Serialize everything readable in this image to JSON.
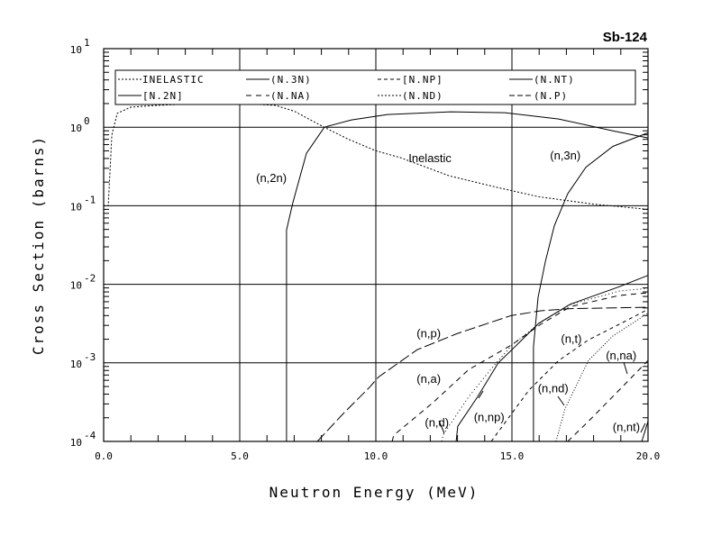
{
  "chart_data": {
    "type": "line",
    "title": "Sb-124",
    "xlabel": "Neutron Energy (MeV)",
    "ylabel": "Cross Section (barns)",
    "xlim": [
      0,
      20
    ],
    "ylim": [
      0.0001,
      10
    ],
    "yscale": "log",
    "grid": true,
    "legend_placement": "top",
    "x_ticks": [
      "0.0",
      "5.0",
      "10.0",
      "15.0",
      "20.0"
    ],
    "x_tick_values": [
      0,
      5,
      10,
      15,
      20
    ],
    "y_ticks": [
      {
        "base": "10",
        "exp": "1",
        "value": 10
      },
      {
        "base": "10",
        "exp": "0",
        "value": 1
      },
      {
        "base": "10",
        "exp": "-1",
        "value": 0.1
      },
      {
        "base": "10",
        "exp": "-2",
        "value": 0.01
      },
      {
        "base": "10",
        "exp": "-3",
        "value": 0.001
      },
      {
        "base": "10",
        "exp": "-4",
        "value": 0.0001
      }
    ],
    "legend": [
      "INELASTIC",
      "(N.3N)",
      "[N.NP]",
      "(N.NT)",
      "[N.2N]",
      "(N.NA)",
      "(N.ND)",
      "(N.P)"
    ],
    "legend_styles": [
      "inelastic",
      "n3n",
      "np",
      "nt",
      "n2n",
      "na",
      "nd",
      "p"
    ],
    "series": [
      {
        "name": "inelastic",
        "label": "Inelastic",
        "dash": "2,2",
        "x": [
          0.0,
          0.17,
          0.3,
          0.5,
          1.0,
          2.0,
          3.5,
          5.0,
          6.3,
          7.0,
          8.1,
          9.0,
          10.0,
          10.9,
          12.7,
          14.5,
          16.0,
          18.0,
          20.0
        ],
        "y": [
          0.1,
          0.1,
          0.8,
          1.5,
          1.8,
          1.9,
          2.0,
          2.0,
          1.9,
          1.6,
          1.0,
          0.7,
          0.5,
          0.41,
          0.24,
          0.17,
          0.13,
          0.105,
          0.09
        ],
        "annotation": {
          "text": "Inelastic",
          "x": 11.2,
          "y": 0.36
        }
      },
      {
        "name": "n2n",
        "label": "(n,2n)",
        "dash": "",
        "x": [
          6.72,
          6.72,
          6.95,
          7.45,
          8.11,
          9.11,
          10.43,
          12.75,
          14.74,
          16.72,
          18.71,
          20.0
        ],
        "y": [
          0.0001,
          0.049,
          0.109,
          0.465,
          1.0,
          1.24,
          1.45,
          1.57,
          1.53,
          1.27,
          0.9,
          0.73
        ],
        "annotation": {
          "text": "(n,2n)",
          "x": 5.6,
          "y": 0.2
        }
      },
      {
        "name": "n3n",
        "label": "(n,3n)",
        "dash": "",
        "x": [
          15.79,
          15.79,
          15.96,
          16.23,
          16.56,
          17.05,
          17.72,
          18.71,
          20.0
        ],
        "y": [
          0.0001,
          0.0016,
          0.0068,
          0.0195,
          0.056,
          0.142,
          0.31,
          0.57,
          0.85
        ],
        "annotation": {
          "text": "(n,3n)",
          "x": 16.4,
          "y": 0.39
        }
      },
      {
        "name": "p",
        "label": "(n,p)",
        "dash": "12,4",
        "x": [
          7.85,
          8.77,
          9.77,
          10.1,
          11.52,
          12.98,
          14.97,
          16.06,
          17.15,
          20.0
        ],
        "y": [
          0.0001,
          0.00022,
          0.00049,
          0.00066,
          0.00147,
          0.00235,
          0.004,
          0.0046,
          0.0049,
          0.0051
        ],
        "annotation": {
          "text": "(n,p)",
          "x": 11.5,
          "y": 0.0021
        }
      },
      {
        "name": "na_alpha",
        "label": "(n,a)",
        "dash": "6,5",
        "x": [
          10.6,
          10.66,
          12.09,
          13.41,
          14.97,
          16.06,
          17.15,
          18.94,
          20.0
        ],
        "y": [
          0.0001,
          0.00012,
          0.00031,
          0.00082,
          0.00168,
          0.0031,
          0.0052,
          0.0072,
          0.0078
        ],
        "annotation": {
          "text": "(n,a)",
          "x": 11.5,
          "y": 0.00056
        }
      },
      {
        "name": "np",
        "label": "(n,np)",
        "dash": "",
        "x": [
          12.95,
          13.01,
          13.74,
          14.5,
          15.0,
          15.99,
          17.15,
          18.94,
          20.0
        ],
        "y": [
          0.0001,
          0.000156,
          0.00037,
          0.001,
          0.00147,
          0.0032,
          0.0056,
          0.0093,
          0.013
        ],
        "annotation": {
          "text": "(n,np)",
          "x": 13.6,
          "y": 0.00018
        }
      },
      {
        "name": "d",
        "label": "(n,d)",
        "dash": "1,3",
        "x": [
          12.42,
          12.48,
          13.41,
          14.3,
          15.0,
          16.06,
          17.15,
          18.94,
          20.0
        ],
        "y": [
          0.0001,
          0.000123,
          0.00037,
          0.00089,
          0.00168,
          0.0033,
          0.0055,
          0.0082,
          0.0089
        ],
        "annotation": {
          "text": "(n,d)",
          "x": 11.8,
          "y": 0.000155
        }
      },
      {
        "name": "t",
        "label": "(n,t)",
        "dash": "4,4",
        "x": [
          14.24,
          15.63,
          16.72,
          17.81,
          18.94,
          20.0
        ],
        "y": [
          0.0001,
          0.00045,
          0.00107,
          0.00196,
          0.0031,
          0.0048
        ],
        "annotation": {
          "text": "(n,t)",
          "x": 16.8,
          "y": 0.0018
        }
      },
      {
        "name": "nd",
        "label": "(n,nd)",
        "dash": "1,2",
        "x": [
          16.62,
          16.95,
          17.81,
          18.71,
          20.0
        ],
        "y": [
          0.0001,
          0.00026,
          0.00107,
          0.0022,
          0.0043
        ],
        "annotation": {
          "text": "(n,nd)",
          "x": 15.95,
          "y": 0.00042
        }
      },
      {
        "name": "nalpha_n",
        "label": "(n,na)",
        "dash": "6,5",
        "x": [
          17.05,
          17.81,
          18.94,
          20.0
        ],
        "y": [
          0.0001,
          0.00018,
          0.00045,
          0.00107
        ],
        "annotation": {
          "text": "(n,na)",
          "x": 18.45,
          "y": 0.0011
        }
      },
      {
        "name": "nt",
        "label": "(n,nt)",
        "dash": "",
        "x": [
          19.77,
          20.0
        ],
        "y": [
          0.0001,
          0.00018
        ],
        "annotation": {
          "text": "(n,nt)",
          "x": 18.7,
          "y": 0.000135
        }
      }
    ]
  }
}
